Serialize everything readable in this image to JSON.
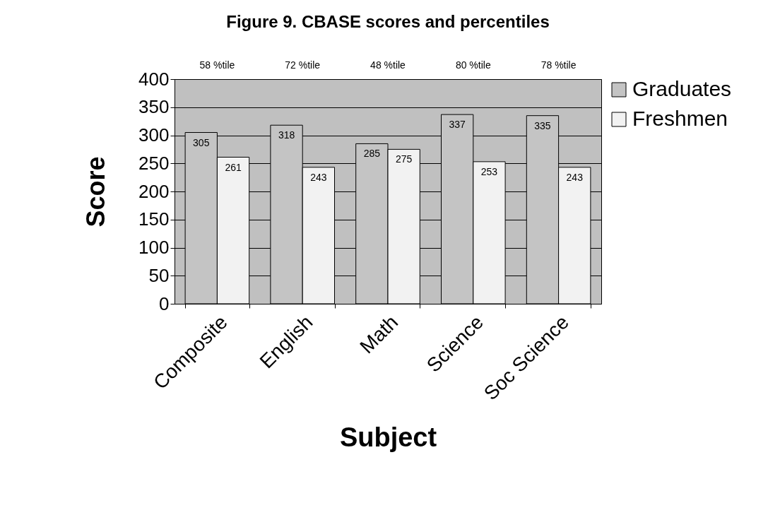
{
  "chart_data": {
    "type": "bar",
    "title": "Figure 9. CBASE scores and percentiles",
    "xlabel": "Subject",
    "ylabel": "Score",
    "categories": [
      "Composite",
      "English",
      "Math",
      "Science",
      "Soc Science"
    ],
    "series": [
      {
        "name": "Graduates",
        "color": "#c4c4c4",
        "values": [
          305,
          318,
          285,
          337,
          335
        ]
      },
      {
        "name": "Freshmen",
        "color": "#f2f2f2",
        "values": [
          261,
          243,
          275,
          253,
          243
        ]
      }
    ],
    "ylim": [
      0,
      400
    ],
    "yticks": [
      0,
      50,
      100,
      150,
      200,
      250,
      300,
      350,
      400
    ],
    "grid": "y",
    "legend": "right",
    "data_labels": true,
    "annotations": [
      "58 %tile",
      "72 %tile",
      "48 %tile",
      "80 %tile",
      "78 %tile"
    ]
  }
}
